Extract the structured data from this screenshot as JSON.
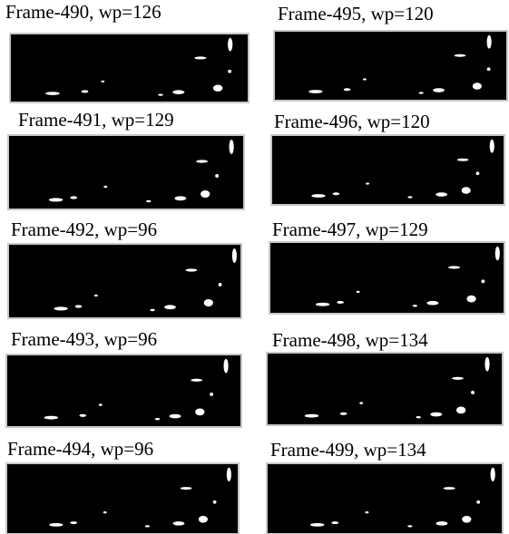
{
  "panels": [
    {
      "label": "Frame-490, wp=126"
    },
    {
      "label": "Frame-491, wp=129"
    },
    {
      "label": "Frame-492, wp=96"
    },
    {
      "label": "Frame-493, wp=96"
    },
    {
      "label": "Frame-494, wp=96"
    },
    {
      "label": "Frame-495, wp=120"
    },
    {
      "label": "Frame-496, wp=120"
    },
    {
      "label": "Frame-497, wp=129"
    },
    {
      "label": "Frame-498, wp=134"
    },
    {
      "label": "Frame-499, wp=134"
    }
  ]
}
